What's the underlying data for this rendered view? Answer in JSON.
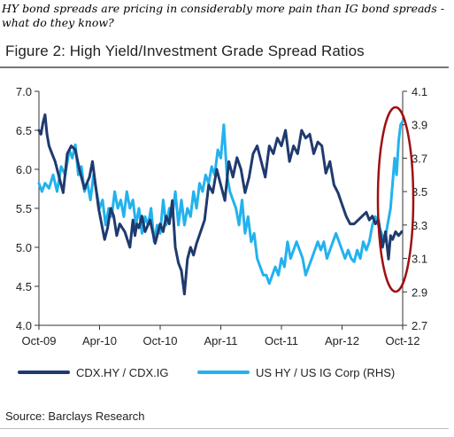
{
  "caption": "HY bond spreads are pricing in considerably more pain than IG bond spreads - what do they know?",
  "figure_title": "Figure 2: High Yield/Investment Grade Spread Ratios",
  "source": "Source: Barclays Research",
  "colors": {
    "series1": "#1f3a6e",
    "series2": "#22b2ee",
    "highlight": "#a01010",
    "axis": "#333333"
  },
  "chart_data": {
    "type": "line",
    "x_tick_labels": [
      "Oct-09",
      "Apr-10",
      "Oct-10",
      "Apr-11",
      "Oct-11",
      "Apr-12",
      "Oct-12"
    ],
    "left_axis": {
      "ticks": [
        "7.0",
        "6.5",
        "6.0",
        "5.5",
        "5.0",
        "4.5",
        "4.0"
      ],
      "ylim": [
        4.0,
        7.0
      ]
    },
    "right_axis": {
      "ticks": [
        "4.1",
        "3.9",
        "3.7",
        "3.5",
        "3.3",
        "3.1",
        "2.9",
        "2.7"
      ],
      "ylim": [
        2.7,
        4.1
      ]
    },
    "grid": false,
    "legend_position": "bottom",
    "series": [
      {
        "name": "CDX.HY / CDX.IG",
        "axis": "left",
        "x": [
          0.0,
          0.2,
          0.4,
          0.6,
          0.8,
          1.0,
          1.3,
          1.6,
          2.0,
          2.4,
          2.8,
          3.2,
          3.6,
          4.0,
          4.5,
          5.0,
          5.3,
          5.6,
          5.9,
          6.2,
          6.5,
          6.8,
          7.1,
          7.4,
          7.7,
          8.0,
          8.5,
          9.0,
          9.3,
          9.5,
          9.7,
          9.9,
          10.2,
          10.5,
          11.0,
          11.5,
          12.0,
          12.3,
          12.6,
          12.9,
          13.2,
          13.5,
          13.8,
          14.1,
          14.4,
          14.7,
          15.0,
          15.3,
          15.6,
          16.0,
          16.4,
          16.8,
          17.2,
          17.6,
          18.0,
          18.4,
          18.8,
          19.2,
          19.6,
          20.0,
          20.4,
          20.8,
          21.2,
          21.6,
          22.0,
          22.4,
          22.8,
          23.2,
          23.6,
          24.0,
          24.4,
          24.8,
          25.2,
          25.6,
          26.0,
          26.4,
          26.8,
          27.2,
          27.6,
          28.0,
          28.4,
          28.8,
          29.2,
          29.6,
          30.0,
          30.4,
          30.8,
          31.2,
          31.6,
          32.0,
          32.4,
          32.7,
          33.0,
          33.3,
          33.6,
          34.0,
          34.3,
          34.6,
          34.8,
          35.0,
          35.3,
          35.6,
          35.9
        ],
        "values": [
          6.5,
          6.45,
          6.6,
          6.7,
          6.45,
          6.3,
          6.2,
          6.1,
          5.9,
          5.7,
          6.2,
          6.3,
          6.25,
          6.0,
          5.75,
          5.9,
          6.1,
          5.8,
          5.5,
          5.3,
          5.1,
          5.25,
          5.5,
          5.4,
          5.15,
          5.3,
          5.2,
          5.0,
          5.35,
          5.15,
          5.3,
          5.25,
          5.4,
          5.2,
          5.35,
          5.05,
          5.3,
          5.2,
          5.4,
          5.3,
          5.6,
          5.0,
          4.8,
          4.7,
          4.4,
          4.85,
          5.0,
          4.9,
          5.05,
          5.2,
          5.35,
          5.8,
          5.7,
          6.0,
          5.8,
          5.6,
          6.1,
          5.9,
          6.15,
          6.0,
          5.7,
          5.9,
          6.2,
          6.3,
          6.1,
          5.9,
          6.3,
          6.2,
          6.4,
          6.3,
          6.5,
          6.1,
          6.3,
          6.2,
          6.5,
          6.4,
          6.45,
          6.2,
          6.35,
          6.3,
          5.95,
          6.1,
          5.8,
          5.7,
          5.55,
          5.4,
          5.3,
          5.3,
          5.35,
          5.4,
          5.45,
          5.35,
          5.4,
          5.3,
          5.35,
          5.0,
          5.2,
          4.85,
          5.15,
          5.1,
          5.2,
          5.15,
          5.2
        ]
      },
      {
        "name": "US HY / US IG Corp (RHS)",
        "axis": "right",
        "x": [
          0.0,
          0.3,
          0.6,
          1.0,
          1.4,
          1.8,
          2.2,
          2.6,
          3.0,
          3.3,
          3.6,
          3.9,
          4.2,
          4.5,
          4.8,
          5.1,
          5.4,
          5.7,
          6.0,
          6.3,
          6.6,
          6.9,
          7.2,
          7.5,
          7.8,
          8.1,
          8.4,
          8.7,
          9.0,
          9.3,
          9.6,
          9.9,
          10.2,
          10.5,
          10.8,
          11.1,
          11.4,
          11.7,
          12.0,
          12.3,
          12.6,
          12.9,
          13.2,
          13.5,
          13.8,
          14.1,
          14.4,
          14.7,
          15.0,
          15.3,
          15.6,
          15.9,
          16.2,
          16.5,
          16.8,
          17.1,
          17.4,
          17.7,
          18.0,
          18.3,
          18.6,
          18.9,
          19.2,
          19.5,
          19.8,
          20.1,
          20.4,
          20.7,
          21.0,
          21.3,
          21.6,
          21.9,
          22.2,
          22.5,
          22.8,
          23.1,
          23.4,
          23.7,
          24.0,
          24.3,
          24.6,
          24.9,
          25.2,
          25.5,
          25.8,
          26.1,
          26.4,
          26.7,
          27.0,
          27.3,
          27.6,
          27.9,
          28.2,
          28.5,
          28.8,
          29.1,
          29.4,
          29.7,
          30.0,
          30.3,
          30.6,
          30.9,
          31.2,
          31.5,
          31.8,
          32.1,
          32.4,
          32.7,
          33.0,
          33.3,
          33.6,
          33.9,
          34.2,
          34.5,
          34.8,
          35.0,
          35.2,
          35.4,
          35.6,
          35.8,
          36.0
        ],
        "values": [
          3.55,
          3.5,
          3.55,
          3.52,
          3.6,
          3.5,
          3.65,
          3.6,
          3.75,
          3.7,
          3.78,
          3.6,
          3.65,
          3.5,
          3.55,
          3.45,
          3.6,
          3.5,
          3.4,
          3.45,
          3.3,
          3.4,
          3.35,
          3.5,
          3.4,
          3.45,
          3.35,
          3.5,
          3.4,
          3.45,
          3.3,
          3.4,
          3.25,
          3.35,
          3.3,
          3.4,
          3.2,
          3.3,
          3.25,
          3.45,
          3.3,
          3.4,
          3.35,
          3.5,
          3.3,
          3.45,
          3.3,
          3.4,
          3.35,
          3.5,
          3.4,
          3.55,
          3.5,
          3.6,
          3.55,
          3.65,
          3.6,
          3.75,
          3.7,
          3.9,
          3.6,
          3.5,
          3.45,
          3.4,
          3.3,
          3.45,
          3.25,
          3.35,
          3.2,
          3.25,
          3.1,
          3.05,
          3.0,
          3.0,
          2.95,
          3.0,
          3.05,
          3.0,
          3.1,
          3.05,
          3.2,
          3.1,
          3.15,
          3.2,
          3.15,
          3.1,
          3.0,
          3.05,
          3.1,
          3.15,
          3.2,
          3.15,
          3.2,
          3.1,
          3.15,
          3.2,
          3.25,
          3.2,
          3.15,
          3.1,
          3.15,
          3.1,
          3.08,
          3.15,
          3.1,
          3.2,
          3.15,
          3.2,
          3.3,
          3.35,
          3.3,
          3.25,
          3.2,
          3.3,
          3.4,
          3.55,
          3.7,
          3.6,
          3.8,
          3.9,
          3.92
        ]
      }
    ]
  }
}
